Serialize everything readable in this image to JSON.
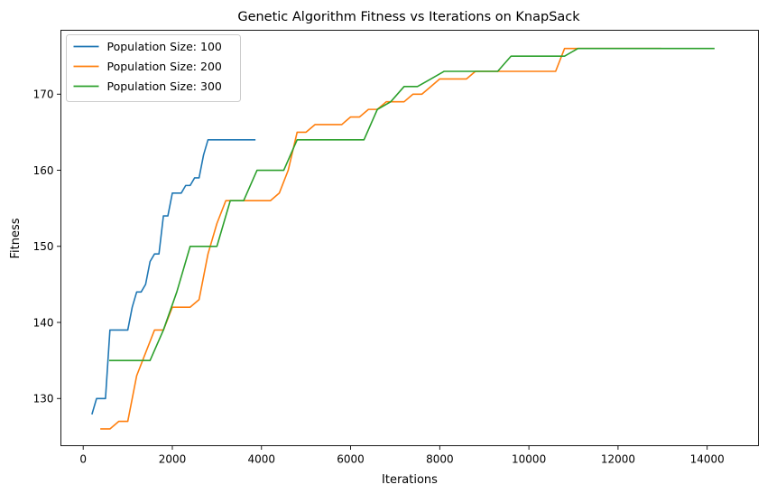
{
  "chart_data": {
    "type": "line",
    "title": "Genetic Algorithm Fitness vs Iterations on KnapSack",
    "xlabel": "Iterations",
    "ylabel": "Fitness",
    "xlim": [
      -500,
      15150
    ],
    "ylim": [
      123.8,
      178.4
    ],
    "xticks": [
      0,
      2000,
      4000,
      6000,
      8000,
      10000,
      12000,
      14000
    ],
    "yticks": [
      130,
      140,
      150,
      160,
      170
    ],
    "grid": false,
    "legend_position": "top-left",
    "series": [
      {
        "name": "Population Size: 100",
        "color": "#1f77b4",
        "x": [
          200,
          300,
          400,
          500,
          600,
          700,
          800,
          900,
          1000,
          1100,
          1200,
          1300,
          1400,
          1500,
          1600,
          1700,
          1800,
          1900,
          2000,
          2100,
          2200,
          2300,
          2400,
          2500,
          2600,
          2700,
          2800,
          2900,
          3000,
          3100,
          3200,
          3300,
          3400,
          3500,
          3600,
          3700,
          3800,
          3850
        ],
        "y": [
          128,
          130,
          130,
          130,
          139,
          139,
          139,
          139,
          139,
          142,
          144,
          144,
          145,
          148,
          149,
          149,
          154,
          154,
          157,
          157,
          157,
          158,
          158,
          159,
          159,
          162,
          164,
          164,
          164,
          164,
          164,
          164,
          164,
          164,
          164,
          164,
          164,
          164
        ]
      },
      {
        "name": "Population Size: 200",
        "color": "#ff7f0e",
        "x": [
          400,
          600,
          800,
          1000,
          1200,
          1400,
          1600,
          1800,
          2000,
          2200,
          2400,
          2600,
          2800,
          3000,
          3200,
          3400,
          3600,
          3800,
          4000,
          4200,
          4400,
          4600,
          4800,
          5000,
          5200,
          5400,
          5600,
          5800,
          6000,
          6200,
          6400,
          6600,
          6800,
          7000,
          7200,
          7400,
          7600,
          7800,
          8000,
          8200,
          8400,
          8600,
          8800,
          9000,
          9200,
          9400,
          9600,
          9800,
          10000,
          10200,
          10400,
          10600,
          10800,
          11000,
          11200,
          11400,
          11600,
          11800,
          12000,
          12200,
          12400,
          12600,
          12800,
          12950
        ],
        "y": [
          126,
          126,
          127,
          127,
          133,
          136,
          139,
          139,
          142,
          142,
          142,
          143,
          149,
          153,
          156,
          156,
          156,
          156,
          156,
          156,
          157,
          160,
          165,
          165,
          166,
          166,
          166,
          166,
          167,
          167,
          168,
          168,
          169,
          169,
          169,
          170,
          170,
          171,
          172,
          172,
          172,
          172,
          173,
          173,
          173,
          173,
          173,
          173,
          173,
          173,
          173,
          173,
          176,
          176,
          176,
          176,
          176,
          176,
          176,
          176,
          176,
          176,
          176,
          176
        ]
      },
      {
        "name": "Population Size: 300",
        "color": "#2ca02c",
        "x": [
          600,
          900,
          1200,
          1500,
          1800,
          2100,
          2400,
          2700,
          3000,
          3300,
          3600,
          3900,
          4200,
          4500,
          4800,
          5100,
          5400,
          5700,
          6000,
          6300,
          6600,
          6900,
          7200,
          7500,
          7800,
          8100,
          8400,
          8700,
          9000,
          9300,
          9600,
          9900,
          10200,
          10500,
          10800,
          11100,
          11400,
          11700,
          12000,
          12300,
          12600,
          12900,
          13200,
          13500,
          13800,
          14150
        ],
        "y": [
          135,
          135,
          135,
          135,
          139,
          144,
          150,
          150,
          150,
          156,
          156,
          160,
          160,
          160,
          164,
          164,
          164,
          164,
          164,
          164,
          168,
          169,
          171,
          171,
          172,
          173,
          173,
          173,
          173,
          173,
          175,
          175,
          175,
          175,
          175,
          176,
          176,
          176,
          176,
          176,
          176,
          176,
          176,
          176,
          176,
          176
        ]
      }
    ]
  }
}
